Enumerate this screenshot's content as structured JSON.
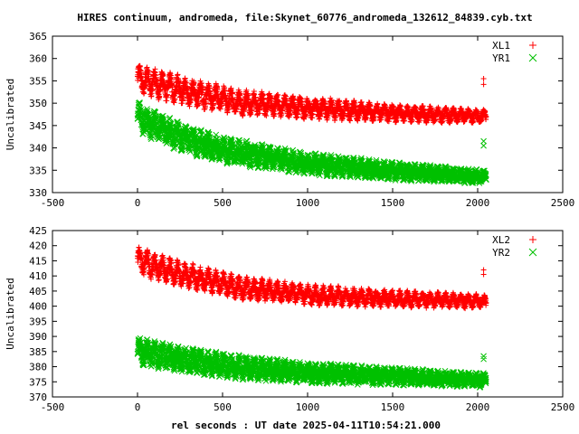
{
  "chart_data": [
    {
      "type": "scatter",
      "title": "HIRES continuum, andromeda, file:Skynet_60776_andromeda_132612_84839.cyb.txt",
      "xlabel": "",
      "ylabel": "Uncalibrated",
      "xlim": [
        -500,
        2500
      ],
      "ylim": [
        330,
        365
      ],
      "xticks": [
        -500,
        0,
        500,
        1000,
        1500,
        2000,
        2500
      ],
      "yticks": [
        330,
        335,
        340,
        345,
        350,
        355,
        360,
        365
      ],
      "legend_position": "top-right",
      "grid": false,
      "series": [
        {
          "name": "XL1",
          "marker": "plus",
          "color": "#ff0000",
          "x_range": [
            0,
            2050
          ],
          "trend": [
            [
              0,
              355.5
            ],
            [
              100,
              354.5
            ],
            [
              300,
              352.5
            ],
            [
              600,
              350.2
            ],
            [
              1000,
              349.0
            ],
            [
              1500,
              347.8
            ],
            [
              2050,
              347.0
            ]
          ],
          "spread": [
            4.5,
            2.0
          ],
          "outliers": [
            [
              2035,
              355.5
            ],
            [
              2035,
              354.2
            ]
          ]
        },
        {
          "name": "YR1",
          "marker": "cross",
          "color": "#00c000",
          "x_range": [
            0,
            2050
          ],
          "trend": [
            [
              0,
              347.0
            ],
            [
              100,
              345.0
            ],
            [
              250,
              342.5
            ],
            [
              500,
              339.5
            ],
            [
              1000,
              336.5
            ],
            [
              1500,
              334.8
            ],
            [
              2050,
              333.5
            ]
          ],
          "spread": [
            4.5,
            2.0
          ],
          "outliers": [
            [
              2035,
              341.5
            ],
            [
              2035,
              340.5
            ]
          ]
        }
      ]
    },
    {
      "type": "scatter",
      "title": "",
      "xlabel": "rel seconds : UT date 2025-04-11T10:54:21.000",
      "ylabel": "Uncalibrated",
      "xlim": [
        -500,
        2500
      ],
      "ylim": [
        370,
        425
      ],
      "xticks": [
        -500,
        0,
        500,
        1000,
        1500,
        2000,
        2500
      ],
      "yticks": [
        370,
        375,
        380,
        385,
        390,
        395,
        400,
        405,
        410,
        415,
        420,
        425
      ],
      "legend_position": "top-right",
      "grid": false,
      "series": [
        {
          "name": "XL2",
          "marker": "plus",
          "color": "#ff0000",
          "x_range": [
            0,
            2050
          ],
          "trend": [
            [
              0,
              415.5
            ],
            [
              100,
              413.0
            ],
            [
              300,
              410.0
            ],
            [
              600,
              406.0
            ],
            [
              1000,
              403.8
            ],
            [
              1500,
              402.5
            ],
            [
              2050,
              401.5
            ]
          ],
          "spread": [
            6.0,
            3.0
          ],
          "outliers": [
            [
              2035,
              412.0
            ],
            [
              2035,
              410.5
            ]
          ]
        },
        {
          "name": "YR2",
          "marker": "cross",
          "color": "#00c000",
          "x_range": [
            0,
            2050
          ],
          "trend": [
            [
              0,
              385.5
            ],
            [
              100,
              384.0
            ],
            [
              300,
              382.0
            ],
            [
              600,
              379.8
            ],
            [
              1000,
              378.0
            ],
            [
              1500,
              376.8
            ],
            [
              2050,
              375.5
            ]
          ],
          "spread": [
            6.0,
            3.0
          ],
          "outliers": [
            [
              2035,
              383.5
            ],
            [
              2035,
              382.5
            ]
          ]
        }
      ]
    }
  ]
}
